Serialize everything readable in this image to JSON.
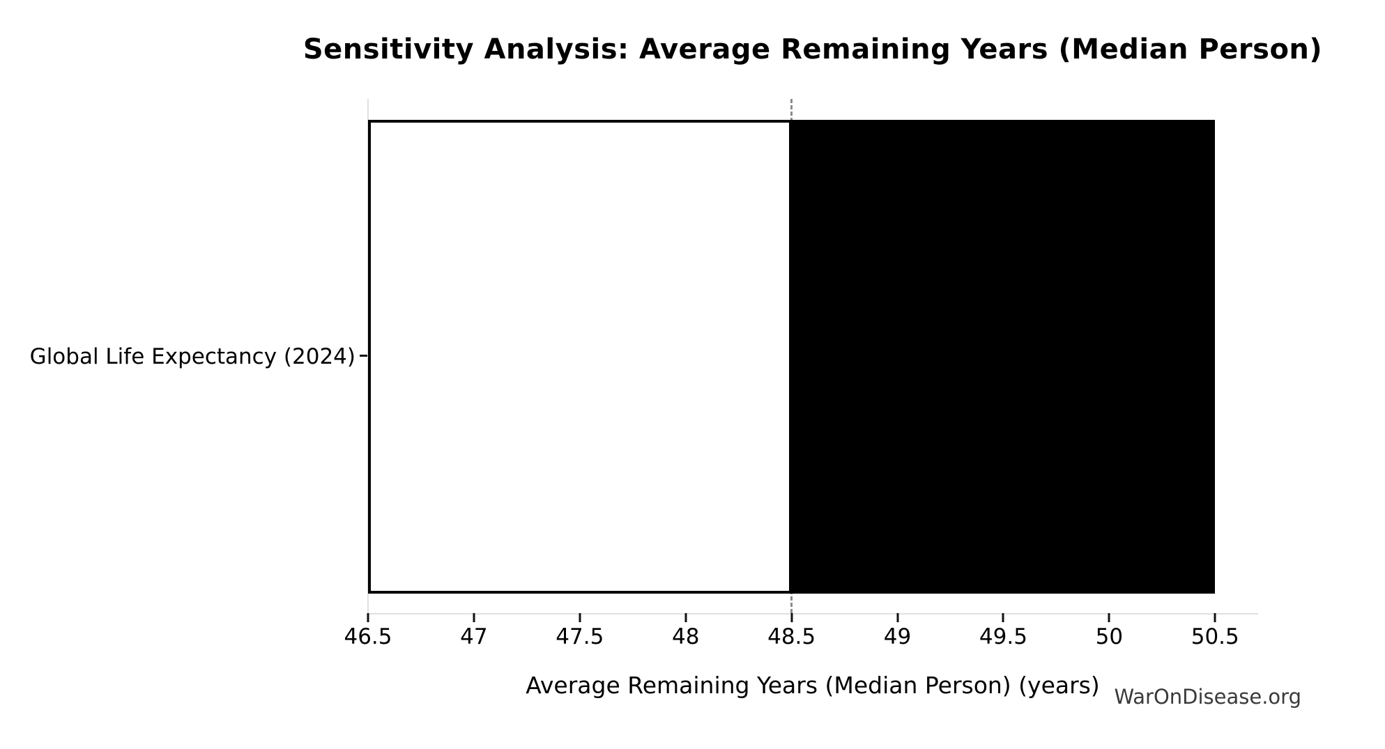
{
  "chart_data": {
    "type": "bar",
    "orientation": "horizontal",
    "title": "Sensitivity Analysis: Average Remaining Years (Median Person)",
    "xlabel": "Average Remaining Years (Median Person) (years)",
    "ylabel": "",
    "categories": [
      "Global Life Expectancy (2024)"
    ],
    "bars": [
      {
        "category": "Global Life Expectancy (2024)",
        "low": 46.5,
        "baseline": 48.5,
        "high": 50.5
      }
    ],
    "baseline_value": 48.5,
    "xlim": [
      46.5,
      50.7
    ],
    "xticks": [
      {
        "value": 46.5,
        "label": "46.5"
      },
      {
        "value": 47.0,
        "label": "47"
      },
      {
        "value": 47.5,
        "label": "47.5"
      },
      {
        "value": 48.0,
        "label": "48"
      },
      {
        "value": 48.5,
        "label": "48.5"
      },
      {
        "value": 49.0,
        "label": "49"
      },
      {
        "value": 49.5,
        "label": "49.5"
      },
      {
        "value": 50.0,
        "label": "50"
      },
      {
        "value": 50.5,
        "label": "50.5"
      }
    ],
    "grid": false,
    "legend": null,
    "watermark": "WarOnDisease.org"
  },
  "colors": {
    "background": "#ffffff",
    "bar_low_fill": "#ffffff",
    "bar_high_fill": "#000000",
    "bar_edge": "#000000",
    "baseline_line": "#8a8a8a",
    "spine": "#e0e0e0",
    "tick_mark": "#111111",
    "text": "#000000",
    "watermark_text": "#3a3a3a"
  }
}
